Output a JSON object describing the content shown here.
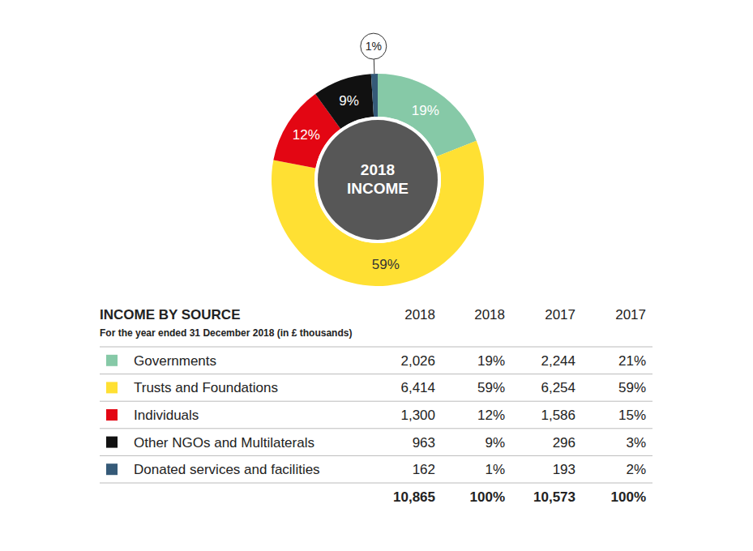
{
  "chart_data": {
    "type": "donut",
    "title": "2018 INCOME",
    "categories": [
      "Governments",
      "Trusts and Foundations",
      "Individuals",
      "Other NGOs and Multilaterals",
      "Donated services and facilities"
    ],
    "values": [
      19,
      59,
      12,
      9,
      1
    ],
    "value_labels": [
      "19%",
      "59%",
      "12%",
      "9%",
      "1%"
    ],
    "colors": [
      "#86c9a7",
      "#ffe033",
      "#e30613",
      "#111111",
      "#355a78"
    ],
    "data_labels": true
  },
  "table": {
    "title": "INCOME BY SOURCE",
    "subtitle": "For the year ended 31 December 2018 (in £ thousands)",
    "columns": [
      "2018",
      "2018",
      "2017",
      "2017"
    ],
    "rows": [
      [
        "2,026",
        "19%",
        "2,244",
        "21%"
      ],
      [
        "6,414",
        "59%",
        "6,254",
        "59%"
      ],
      [
        "1,300",
        "12%",
        "1,586",
        "15%"
      ],
      [
        "963",
        "9%",
        "296",
        "3%"
      ],
      [
        "162",
        "1%",
        "193",
        "2%"
      ]
    ],
    "total": [
      "10,865",
      "100%",
      "10,573",
      "100%"
    ]
  }
}
